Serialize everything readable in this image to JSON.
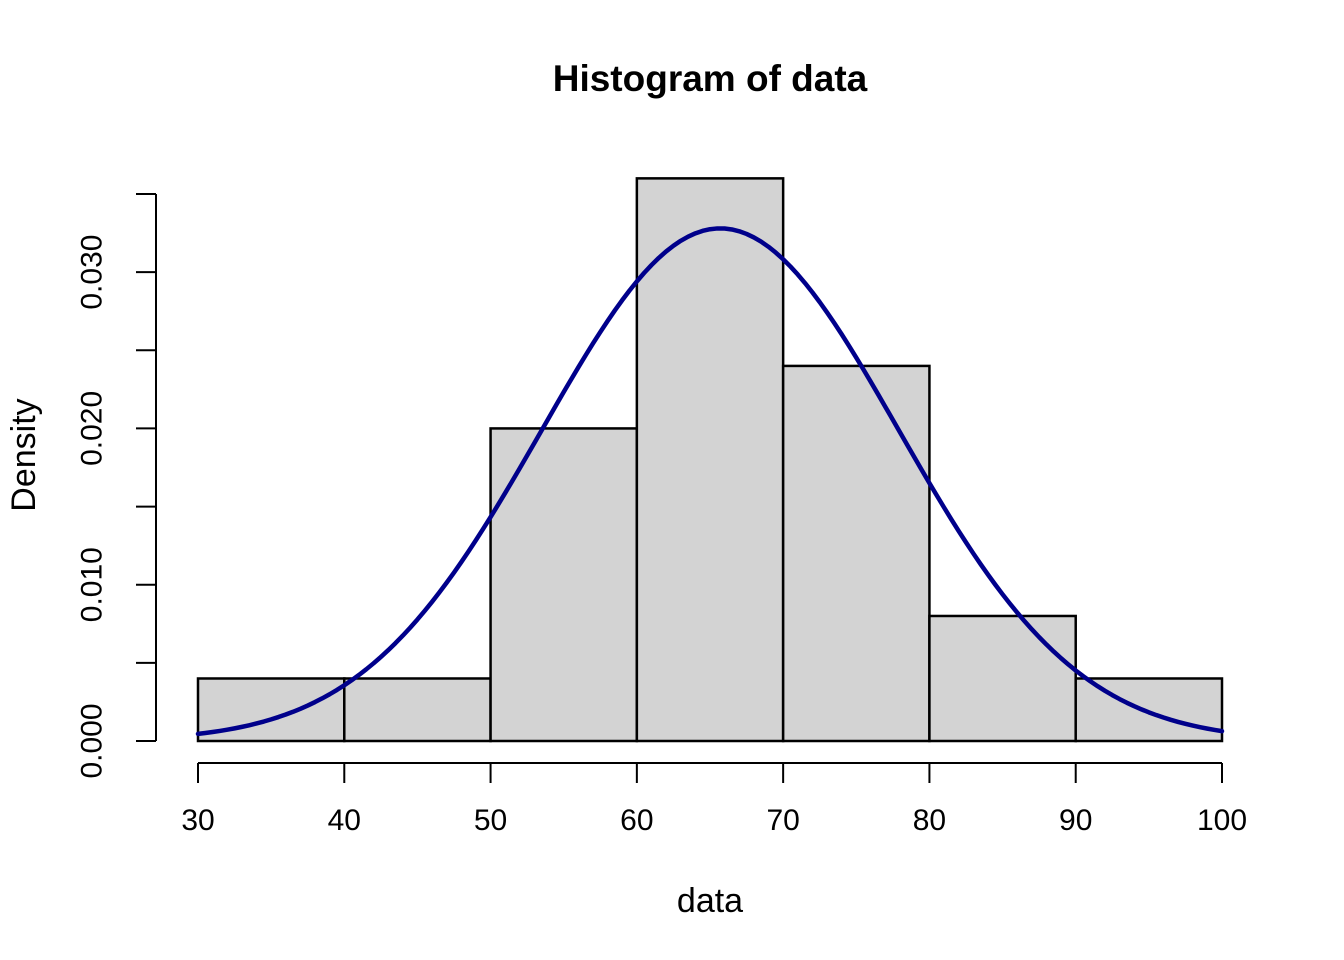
{
  "figure": {
    "background": "#FFFFFF"
  },
  "chart_data": {
    "type": "histogram",
    "title": "Histogram of data",
    "xlabel": "data",
    "ylabel": "Density",
    "xlim": [
      30,
      100
    ],
    "ylim": [
      0,
      0.035
    ],
    "x_ticks": [
      30,
      40,
      50,
      60,
      70,
      80,
      90,
      100
    ],
    "y_ticks": [
      {
        "value": 0.0,
        "label": "0.000"
      },
      {
        "value": 0.005,
        "label": ""
      },
      {
        "value": 0.01,
        "label": "0.010"
      },
      {
        "value": 0.015,
        "label": ""
      },
      {
        "value": 0.02,
        "label": "0.020"
      },
      {
        "value": 0.025,
        "label": ""
      },
      {
        "value": 0.03,
        "label": "0.030"
      },
      {
        "value": 0.035,
        "label": ""
      }
    ],
    "bins": [
      {
        "from": 30,
        "to": 40,
        "density": 0.004
      },
      {
        "from": 40,
        "to": 50,
        "density": 0.004
      },
      {
        "from": 50,
        "to": 60,
        "density": 0.02
      },
      {
        "from": 60,
        "to": 70,
        "density": 0.036
      },
      {
        "from": 70,
        "to": 80,
        "density": 0.024
      },
      {
        "from": 80,
        "to": 90,
        "density": 0.008
      },
      {
        "from": 90,
        "to": 100,
        "density": 0.004
      }
    ],
    "curve": {
      "type": "normal-density",
      "mean": 65.7,
      "sd": 12.2,
      "peak_density": 0.0328,
      "color": "#00008B",
      "line_width": 4.5
    },
    "style": {
      "bar_fill": "#D3D3D3",
      "bar_border": "#000000",
      "axis_color": "#000000",
      "text_color": "#000000"
    },
    "grid": false,
    "legend": false
  }
}
